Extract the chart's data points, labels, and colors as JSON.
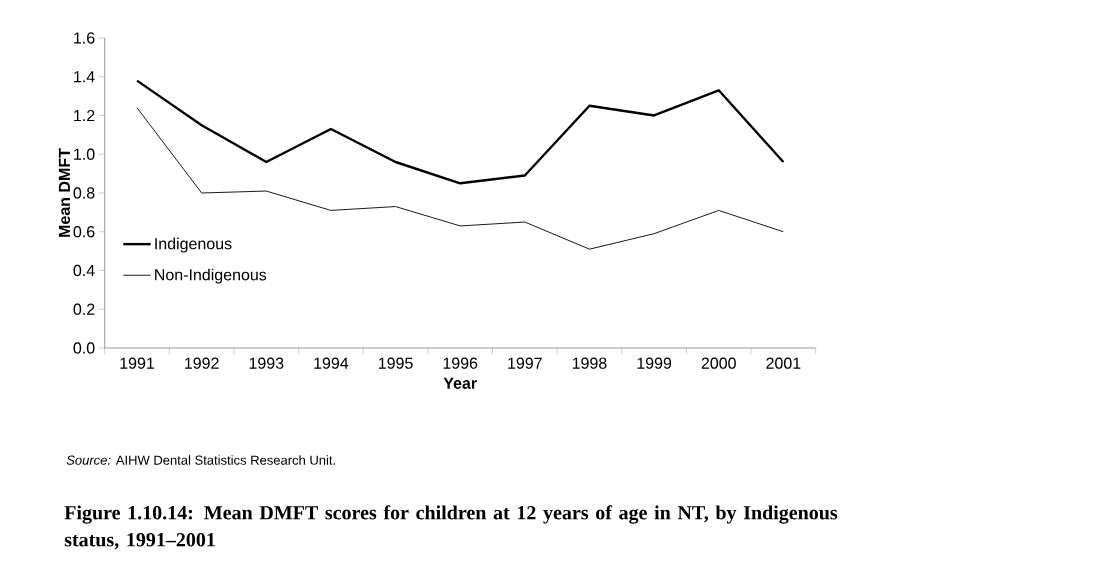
{
  "chart_data": {
    "type": "line",
    "title": "Figure 1.10.14: Mean DMFT scores for children at 12 years of age in NT, by Indigenous status, 1991–2001",
    "xlabel": "Year",
    "ylabel": "Mean DMFT",
    "categories": [
      "1991",
      "1992",
      "1993",
      "1994",
      "1995",
      "1996",
      "1997",
      "1998",
      "1999",
      "2000",
      "2001"
    ],
    "series": [
      {
        "name": "Indigenous",
        "color": "#000000",
        "values": [
          1.38,
          1.15,
          0.96,
          1.13,
          0.96,
          0.85,
          0.89,
          1.25,
          1.2,
          1.33,
          0.96
        ]
      },
      {
        "name": "Non-Indigenous",
        "color": "#000000",
        "values": [
          1.24,
          0.8,
          0.81,
          0.71,
          0.73,
          0.63,
          0.65,
          0.51,
          0.59,
          0.71,
          0.6
        ]
      }
    ],
    "ylim": [
      0,
      1.6
    ],
    "yticks": [
      {
        "value": 0,
        "label": "0.0"
      },
      0.2,
      0.4,
      0.6,
      0.8,
      {
        "value": 1,
        "label": "1.0"
      },
      1.2,
      1.4,
      1.6
    ],
    "grid": false,
    "legend": "left",
    "marker": "none",
    "line_style": "solid",
    "annotations": [
      "*Source:* AIHW Dental Statistics Research Unit."
    ]
  }
}
